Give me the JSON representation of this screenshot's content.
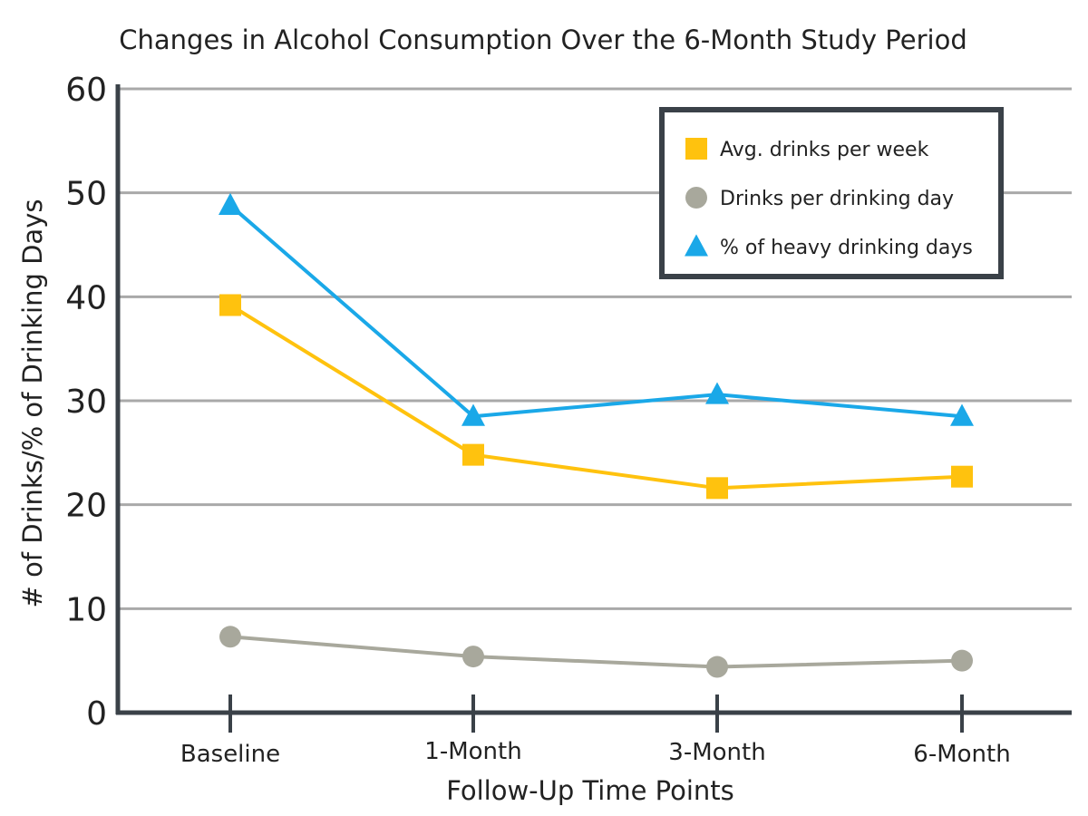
{
  "chart_data": {
    "type": "line",
    "title": "Changes in Alcohol Consumption Over the 6-Month Study Period",
    "xlabel": "Follow-Up Time Points",
    "ylabel": "# of Drinks/% of Drinking Days",
    "categories": [
      "Baseline",
      "1-Month",
      "3-Month",
      "6-Month"
    ],
    "ylim": [
      0,
      60
    ],
    "yticks": [
      "0",
      "10",
      "20",
      "30",
      "40",
      "50",
      "60"
    ],
    "grid": true,
    "legend_position": "top-right",
    "series": [
      {
        "name": "Avg. drinks per week",
        "values": [
          39.2,
          24.8,
          21.6,
          22.7
        ],
        "color": "#FFC20E",
        "marker": "square"
      },
      {
        "name": "Drinks per drinking day",
        "values": [
          7.3,
          5.4,
          4.4,
          5.0
        ],
        "color": "#A8A89C",
        "marker": "circle"
      },
      {
        "name": "% of heavy drinking days",
        "values": [
          48.8,
          28.5,
          30.6,
          28.5
        ],
        "color": "#1AA8E8",
        "marker": "triangle"
      }
    ]
  }
}
